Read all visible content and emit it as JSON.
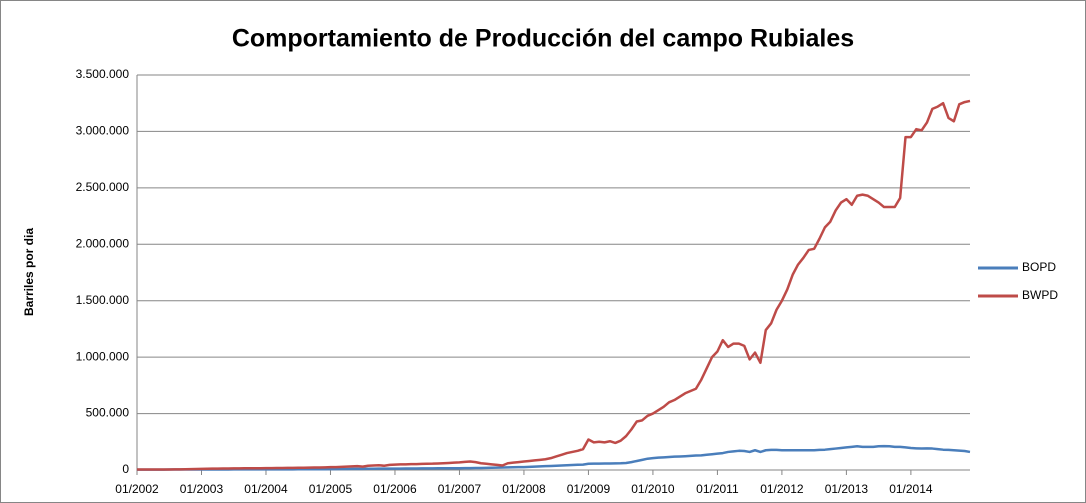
{
  "chart_data": {
    "type": "line",
    "title": "Comportamiento de Producción del campo Rubiales",
    "y_label": "Barriles por dia",
    "categories": [
      "01/2002",
      null,
      null,
      null,
      null,
      null,
      null,
      null,
      null,
      null,
      null,
      null,
      "01/2003",
      null,
      null,
      null,
      null,
      null,
      null,
      null,
      null,
      null,
      null,
      null,
      "01/2004",
      null,
      null,
      null,
      null,
      null,
      null,
      null,
      null,
      null,
      null,
      null,
      "01/2005",
      null,
      null,
      null,
      null,
      null,
      null,
      null,
      null,
      null,
      null,
      null,
      "01/2006",
      null,
      null,
      null,
      null,
      null,
      null,
      null,
      null,
      null,
      null,
      null,
      "01/2007",
      null,
      null,
      null,
      null,
      null,
      null,
      null,
      null,
      null,
      null,
      null,
      "01/2008",
      null,
      null,
      null,
      null,
      null,
      null,
      null,
      null,
      null,
      null,
      null,
      "01/2009",
      null,
      null,
      null,
      null,
      null,
      null,
      null,
      null,
      null,
      null,
      null,
      "01/2010",
      null,
      null,
      null,
      null,
      null,
      null,
      null,
      null,
      null,
      null,
      null,
      "01/2011",
      null,
      null,
      null,
      null,
      null,
      null,
      null,
      null,
      null,
      null,
      null,
      "01/2012",
      null,
      null,
      null,
      null,
      null,
      null,
      null,
      null,
      null,
      null,
      null,
      "01/2013",
      null,
      null,
      null,
      null,
      null,
      null,
      null,
      null,
      null,
      null,
      null,
      "01/2014",
      null,
      null,
      null,
      null,
      null,
      null,
      null,
      null,
      null,
      null,
      null
    ],
    "series": [
      {
        "name": "BOPD",
        "color": "#4a7ebb",
        "values": [
          3000,
          3000,
          3000,
          3000,
          3000,
          3000,
          4000,
          4000,
          4000,
          4000,
          5000,
          5000,
          5000,
          5000,
          5000,
          5000,
          5000,
          5000,
          6000,
          6000,
          6000,
          6000,
          6000,
          6000,
          6000,
          6000,
          6000,
          6000,
          6000,
          6000,
          7000,
          7000,
          7000,
          7000,
          7000,
          7000,
          8000,
          8000,
          9000,
          9000,
          10000,
          10000,
          10000,
          11000,
          11000,
          12000,
          12000,
          12000,
          12000,
          12000,
          13000,
          13000,
          13000,
          14000,
          14000,
          14000,
          15000,
          15000,
          15000,
          16000,
          16000,
          17000,
          17000,
          18000,
          18000,
          19000,
          20000,
          21000,
          22000,
          23000,
          24000,
          25000,
          26000,
          28000,
          30000,
          32000,
          34000,
          36000,
          38000,
          40000,
          42000,
          44000,
          46000,
          48000,
          55000,
          56000,
          57000,
          58000,
          58000,
          59000,
          60000,
          62000,
          70000,
          80000,
          90000,
          100000,
          105000,
          110000,
          112000,
          115000,
          118000,
          120000,
          122000,
          125000,
          128000,
          130000,
          135000,
          140000,
          145000,
          150000,
          160000,
          165000,
          170000,
          168000,
          160000,
          175000,
          160000,
          175000,
          178000,
          178000,
          175000,
          175000,
          175000,
          175000,
          175000,
          175000,
          175000,
          178000,
          180000,
          185000,
          190000,
          195000,
          200000,
          205000,
          210000,
          205000,
          205000,
          205000,
          210000,
          212000,
          210000,
          205000,
          205000,
          200000,
          195000,
          192000,
          190000,
          192000,
          190000,
          185000,
          180000,
          178000,
          175000,
          172000,
          168000,
          160000
        ]
      },
      {
        "name": "BWPD",
        "color": "#be4b48",
        "values": [
          5000,
          5000,
          4000,
          4000,
          5000,
          5000,
          5000,
          6000,
          6000,
          7000,
          8000,
          9000,
          10000,
          11000,
          12000,
          12000,
          13000,
          13000,
          14000,
          14000,
          15000,
          15000,
          16000,
          16000,
          17000,
          17000,
          18000,
          18000,
          19000,
          19000,
          20000,
          20000,
          21000,
          22000,
          22000,
          23000,
          25000,
          26000,
          28000,
          30000,
          32000,
          34000,
          30000,
          38000,
          40000,
          42000,
          38000,
          45000,
          48000,
          50000,
          50000,
          52000,
          52000,
          54000,
          55000,
          56000,
          58000,
          60000,
          62000,
          65000,
          68000,
          72000,
          75000,
          70000,
          60000,
          55000,
          50000,
          45000,
          40000,
          60000,
          65000,
          70000,
          75000,
          80000,
          85000,
          90000,
          95000,
          105000,
          120000,
          135000,
          150000,
          160000,
          170000,
          185000,
          270000,
          245000,
          250000,
          245000,
          255000,
          240000,
          260000,
          300000,
          360000,
          430000,
          440000,
          480000,
          500000,
          530000,
          560000,
          600000,
          620000,
          650000,
          680000,
          700000,
          720000,
          800000,
          900000,
          1000000,
          1050000,
          1150000,
          1090000,
          1120000,
          1120000,
          1100000,
          980000,
          1040000,
          950000,
          1240000,
          1300000,
          1420000,
          1500000,
          1600000,
          1730000,
          1820000,
          1880000,
          1950000,
          1960000,
          2050000,
          2150000,
          2200000,
          2300000,
          2370000,
          2400000,
          2350000,
          2430000,
          2440000,
          2430000,
          2400000,
          2370000,
          2330000,
          2330000,
          2330000,
          2410000,
          2950000,
          2950000,
          3020000,
          3010000,
          3080000,
          3200000,
          3220000,
          3250000,
          3120000,
          3090000,
          3240000,
          3260000,
          3270000
        ]
      }
    ],
    "ylim": [
      0,
      3500000
    ],
    "yticks": [
      0,
      {
        "value": 500000,
        "label": "500.000"
      },
      {
        "value": 1000000,
        "label": "1.000.000"
      },
      {
        "value": 1500000,
        "label": "1.500.000"
      },
      {
        "value": 2000000,
        "label": "2.000.000"
      },
      {
        "value": 2500000,
        "label": "2.500.000"
      },
      {
        "value": 3000000,
        "label": "3.000.000"
      },
      {
        "value": 3500000,
        "label": "3.500.000"
      }
    ],
    "grid": true,
    "legend": "right"
  }
}
